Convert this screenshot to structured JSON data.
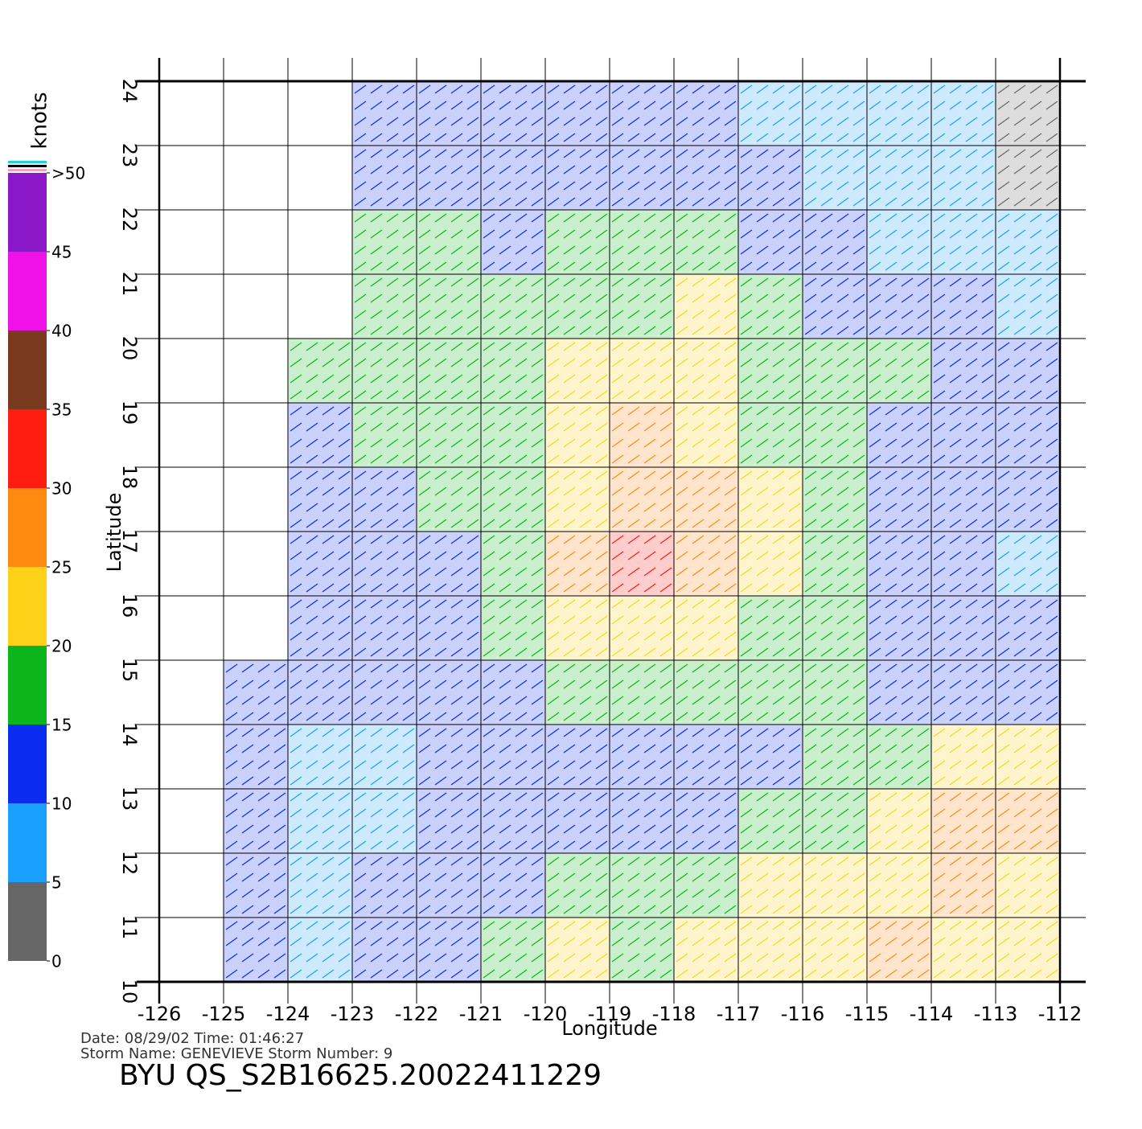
{
  "chart_data": {
    "type": "wind-field",
    "title": "BYU  QS_S2B16625.20022411229",
    "date_line": "Date: 08/29/02   Time: 01:46:27",
    "storm_line": "Storm  Name: GENEVIEVE   Storm  Number: 9",
    "xlabel": "Longitude",
    "ylabel": "Latitude",
    "xlim": [
      -126,
      -112
    ],
    "ylim": [
      10,
      24
    ],
    "xticks": [
      -126,
      -125,
      -124,
      -123,
      -122,
      -121,
      -120,
      -119,
      -118,
      -117,
      -116,
      -115,
      -114,
      -113,
      -112
    ],
    "yticks": [
      10,
      11,
      12,
      13,
      14,
      15,
      16,
      17,
      18,
      19,
      20,
      21,
      22,
      23,
      24
    ],
    "grid": true,
    "grid_lons": [
      -126,
      -125,
      -124,
      -123,
      -122,
      -121,
      -120,
      -119,
      -118,
      -117,
      -116,
      -115,
      -114,
      -113
    ],
    "grid_lats": [
      23,
      22,
      21,
      20,
      19,
      18,
      17,
      16,
      15,
      14,
      13,
      12,
      11,
      10
    ],
    "speed_knots": [
      [
        null,
        null,
        null,
        12,
        12,
        12,
        11,
        11,
        10,
        9,
        8,
        7,
        6,
        4
      ],
      [
        null,
        null,
        null,
        13,
        13,
        12,
        13,
        13,
        13,
        11,
        9,
        8,
        6,
        4
      ],
      [
        null,
        null,
        null,
        15,
        15,
        14,
        16,
        17,
        18,
        14,
        11,
        9,
        8,
        6
      ],
      [
        null,
        null,
        null,
        16,
        16,
        17,
        18,
        19,
        20,
        16,
        12,
        11,
        10,
        8
      ],
      [
        null,
        null,
        15,
        16,
        17,
        17,
        20,
        22,
        21,
        17,
        15,
        15,
        12,
        10
      ],
      [
        null,
        null,
        14,
        16,
        17,
        19,
        23,
        25,
        23,
        19,
        17,
        14,
        12,
        11
      ],
      [
        null,
        null,
        13,
        14,
        16,
        18,
        24,
        29,
        27,
        21,
        17,
        13,
        11,
        10
      ],
      [
        null,
        null,
        12,
        13,
        14,
        17,
        25,
        31,
        27,
        21,
        16,
        12,
        11,
        9
      ],
      [
        null,
        null,
        11,
        12,
        13,
        15,
        20,
        24,
        22,
        19,
        15,
        13,
        12,
        11
      ],
      [
        null,
        11,
        10,
        10,
        12,
        13,
        15,
        17,
        18,
        17,
        15,
        14,
        13,
        12
      ],
      [
        null,
        10,
        9,
        9,
        11,
        12,
        12,
        13,
        14,
        14,
        15,
        17,
        20,
        22
      ],
      [
        null,
        10,
        8,
        9,
        11,
        12,
        12,
        13,
        14,
        16,
        17,
        20,
        25,
        26
      ],
      [
        null,
        10,
        8,
        10,
        12,
        14,
        15,
        16,
        19,
        21,
        22,
        24,
        25,
        22
      ],
      [
        null,
        11,
        9,
        11,
        13,
        18,
        21,
        19,
        21,
        22,
        23,
        25,
        24,
        20
      ]
    ],
    "colorbar": {
      "label": "knots",
      "lim": [
        0,
        50
      ],
      "ticks": [
        0,
        5,
        10,
        15,
        20,
        25,
        30,
        35,
        40,
        45,
        {
          "value": 50,
          "label": ">50"
        }
      ],
      "colors": [
        "#666666",
        "#1aa0ff",
        "#0a2cf0",
        "#0bb51b",
        "#ffd21a",
        "#ff8a10",
        "#ff1c10",
        "#7a3a20",
        "#f010e8",
        "#8a18c8"
      ]
    }
  }
}
